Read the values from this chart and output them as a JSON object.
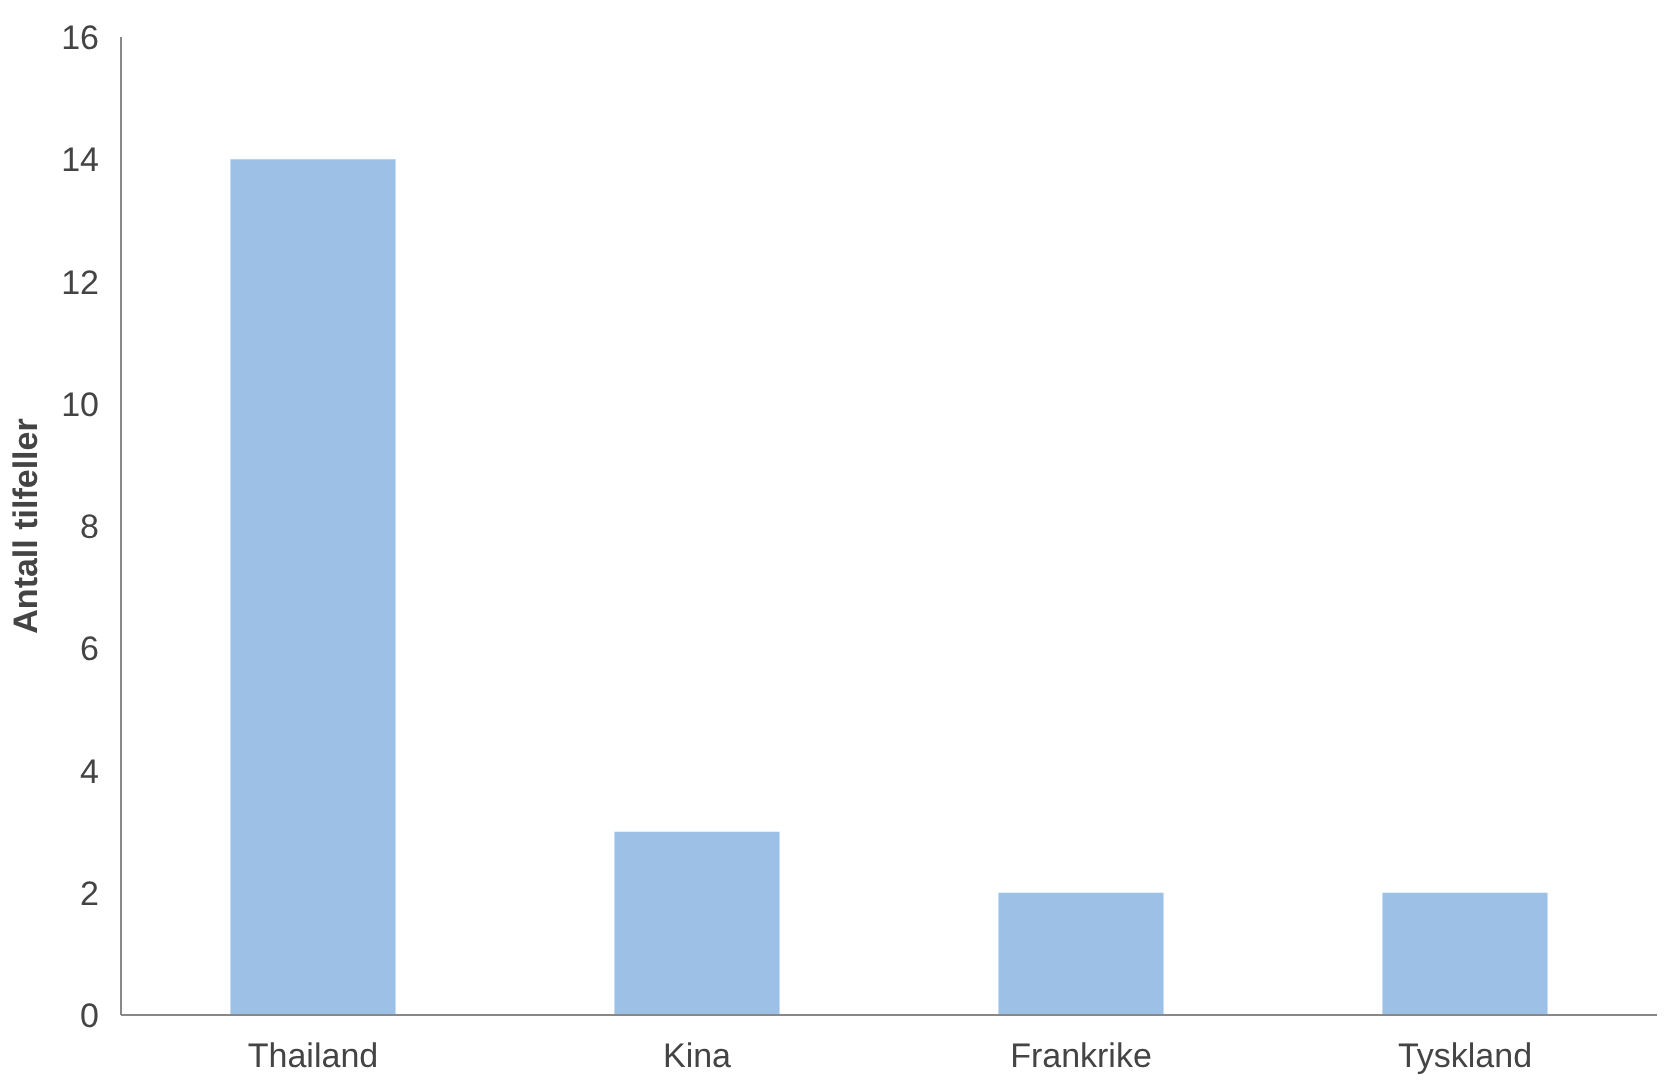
{
  "chart_data": {
    "type": "bar",
    "ylabel": "Antall tilfeller",
    "categories": [
      "Thailand",
      "Kina",
      "Frankrike",
      "Tyskland"
    ],
    "values": [
      14,
      3,
      2,
      2
    ],
    "color": "#9dc0e6",
    "ylim": [
      0,
      16
    ],
    "yticks": [
      0,
      2,
      4,
      6,
      8,
      10,
      12,
      14,
      16
    ],
    "grid": false
  }
}
